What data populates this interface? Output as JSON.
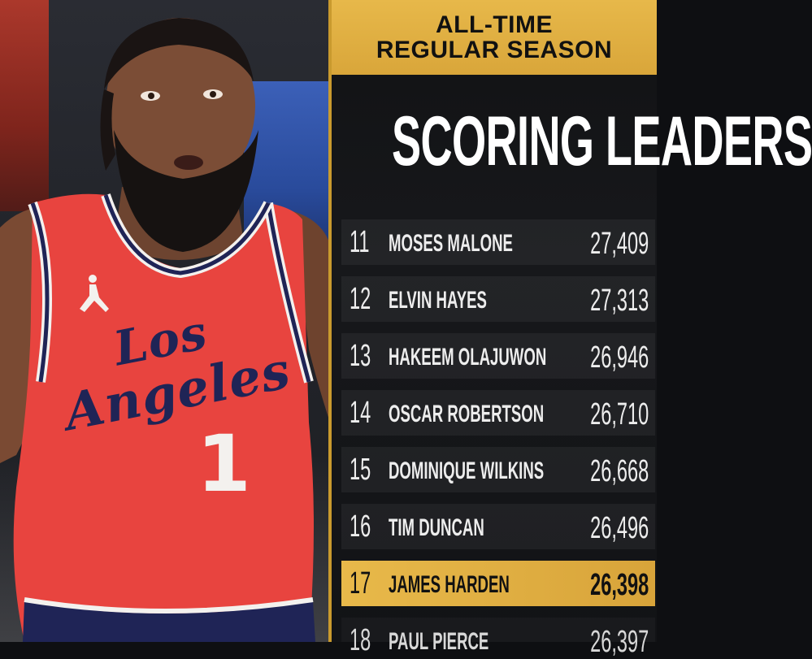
{
  "header": {
    "line1": "ALL-TIME",
    "line2": "REGULAR SEASON"
  },
  "title": "SCORING LEADERS",
  "jersey": {
    "line1": "Los",
    "line2": "Angeles",
    "number": "1"
  },
  "leaders": [
    {
      "rank": "11",
      "name": "MOSES MALONE",
      "points": "27,409",
      "highlight": false
    },
    {
      "rank": "12",
      "name": "ELVIN HAYES",
      "points": "27,313",
      "highlight": false
    },
    {
      "rank": "13",
      "name": "HAKEEM OLAJUWON",
      "points": "26,946",
      "highlight": false
    },
    {
      "rank": "14",
      "name": "OSCAR ROBERTSON",
      "points": "26,710",
      "highlight": false
    },
    {
      "rank": "15",
      "name": "DOMINIQUE WILKINS",
      "points": "26,668",
      "highlight": false
    },
    {
      "rank": "16",
      "name": "TIM DUNCAN",
      "points": "26,496",
      "highlight": false
    },
    {
      "rank": "17",
      "name": "JAMES HARDEN",
      "points": "26,398",
      "highlight": true
    },
    {
      "rank": "18",
      "name": "PAUL PIERCE",
      "points": "26,397",
      "highlight": false
    }
  ],
  "colors": {
    "gold": "#e2b145",
    "jersey_red": "#e8443f",
    "navy": "#1f2456"
  }
}
